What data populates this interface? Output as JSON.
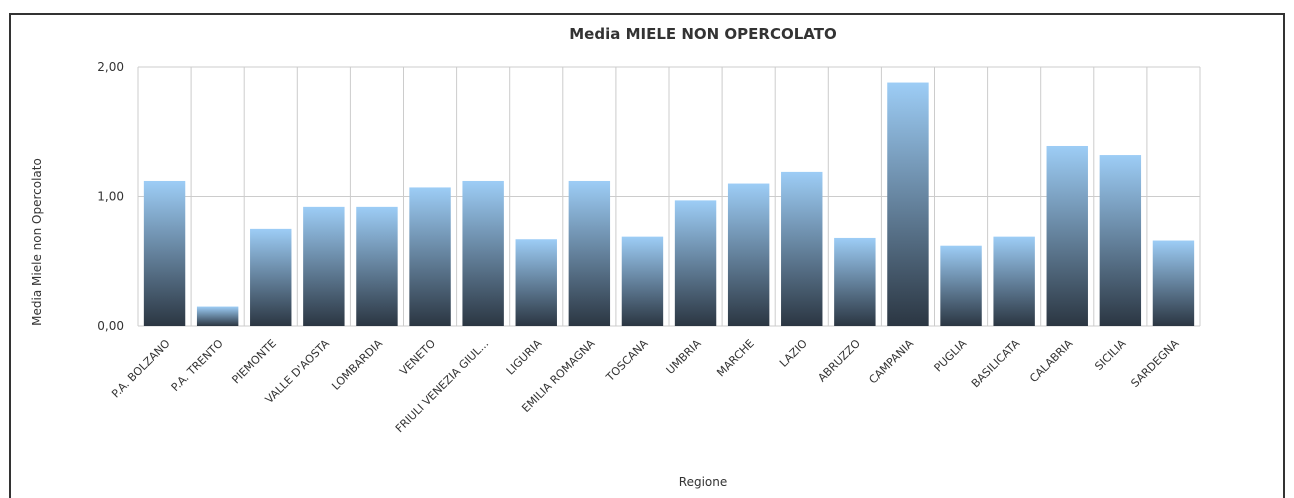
{
  "chart_data": {
    "type": "bar",
    "title": "Media MIELE NON OPERCOLATO",
    "xlabel": "Regione",
    "ylabel": "Media Miele non Opercolato",
    "ylim": [
      0,
      2
    ],
    "yticks": [
      "0,00",
      "1,00",
      "2,00"
    ],
    "ytick_values": [
      0,
      1,
      2
    ],
    "grid": true,
    "categories": [
      "P.A. BOLZANO",
      "P.A. TRENTO",
      "PIEMONTE",
      "VALLE D'AOSTA",
      "LOMBARDIA",
      "VENETO",
      "FRIULI VENEZIA GIUL...",
      "LIGURIA",
      "EMILIA ROMAGNA",
      "TOSCANA",
      "UMBRIA",
      "MARCHE",
      "LAZIO",
      "ABRUZZO",
      "CAMPANIA",
      "PUGLIA",
      "BASILICATA",
      "CALABRIA",
      "SICILIA",
      "SARDEGNA"
    ],
    "values": [
      1.12,
      0.15,
      0.75,
      0.92,
      0.92,
      1.07,
      1.12,
      0.67,
      1.12,
      0.69,
      0.97,
      1.1,
      1.19,
      0.68,
      1.88,
      0.62,
      0.69,
      1.39,
      1.32,
      0.66
    ],
    "colors": {
      "bar_top": "#9dcdf6",
      "bar_bottom": "#2b3642",
      "grid": "#cccccc",
      "text": "#333333"
    }
  }
}
